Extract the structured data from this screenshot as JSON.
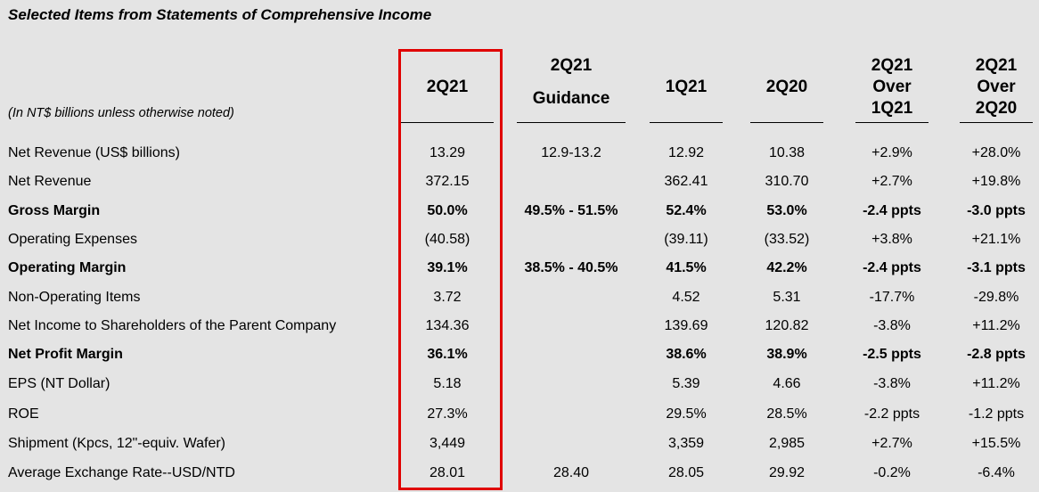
{
  "title": "Selected Items from Statements of Comprehensive Income",
  "subtitle": "(In NT$ billions unless otherwise noted)",
  "headers": [
    {
      "lines": [
        "2Q21"
      ]
    },
    {
      "lines": [
        "2Q21",
        "Guidance"
      ]
    },
    {
      "lines": [
        "1Q21"
      ]
    },
    {
      "lines": [
        "2Q20"
      ]
    },
    {
      "lines": [
        "2Q21",
        "Over",
        "1Q21"
      ]
    },
    {
      "lines": [
        "2Q21",
        "Over",
        "2Q20"
      ]
    }
  ],
  "rows": [
    {
      "label": "Net Revenue (US$ billions)",
      "bold": false,
      "values": [
        "13.29",
        "12.9-13.2",
        "12.92",
        "10.38",
        "+2.9%",
        "+28.0%"
      ]
    },
    {
      "label": "Net Revenue",
      "bold": false,
      "values": [
        "372.15",
        "",
        "362.41",
        "310.70",
        "+2.7%",
        "+19.8%"
      ]
    },
    {
      "label": "Gross Margin",
      "bold": true,
      "values": [
        "50.0%",
        "49.5% - 51.5%",
        "52.4%",
        "53.0%",
        "-2.4 ppts",
        "-3.0 ppts"
      ]
    },
    {
      "label": "Operating Expenses",
      "bold": false,
      "values": [
        "(40.58)",
        "",
        "(39.11)",
        "(33.52)",
        "+3.8%",
        "+21.1%"
      ]
    },
    {
      "label": "Operating Margin",
      "bold": true,
      "values": [
        "39.1%",
        "38.5% - 40.5%",
        "41.5%",
        "42.2%",
        "-2.4 ppts",
        "-3.1 ppts"
      ]
    },
    {
      "label": "Non-Operating Items",
      "bold": false,
      "values": [
        "3.72",
        "",
        "4.52",
        "5.31",
        "-17.7%",
        "-29.8%"
      ]
    },
    {
      "label": "Net Income to Shareholders of the Parent Company",
      "bold": false,
      "values": [
        "134.36",
        "",
        "139.69",
        "120.82",
        "-3.8%",
        "+11.2%"
      ]
    },
    {
      "label": "Net Profit Margin",
      "bold": true,
      "values": [
        "36.1%",
        "",
        "38.6%",
        "38.9%",
        "-2.5 ppts",
        "-2.8 ppts"
      ]
    },
    {
      "label": "EPS (NT Dollar)",
      "bold": false,
      "values": [
        "5.18",
        "",
        "5.39",
        "4.66",
        "-3.8%",
        "+11.2%"
      ]
    },
    {
      "label": "ROE",
      "bold": false,
      "values": [
        "27.3%",
        "",
        "29.5%",
        "28.5%",
        "-2.2 ppts",
        "-1.2 ppts"
      ]
    },
    {
      "label": "Shipment (Kpcs, 12\"-equiv. Wafer)",
      "bold": false,
      "values": [
        "3,449",
        "",
        "3,359",
        "2,985",
        "+2.7%",
        "+15.5%"
      ]
    },
    {
      "label": "Average Exchange Rate--USD/NTD",
      "bold": false,
      "values": [
        "28.01",
        "28.40",
        "28.05",
        "29.92",
        "-0.2%",
        "-6.4%"
      ]
    }
  ],
  "colors": {
    "background": "#e4e4e4",
    "highlight": "#e00000"
  }
}
